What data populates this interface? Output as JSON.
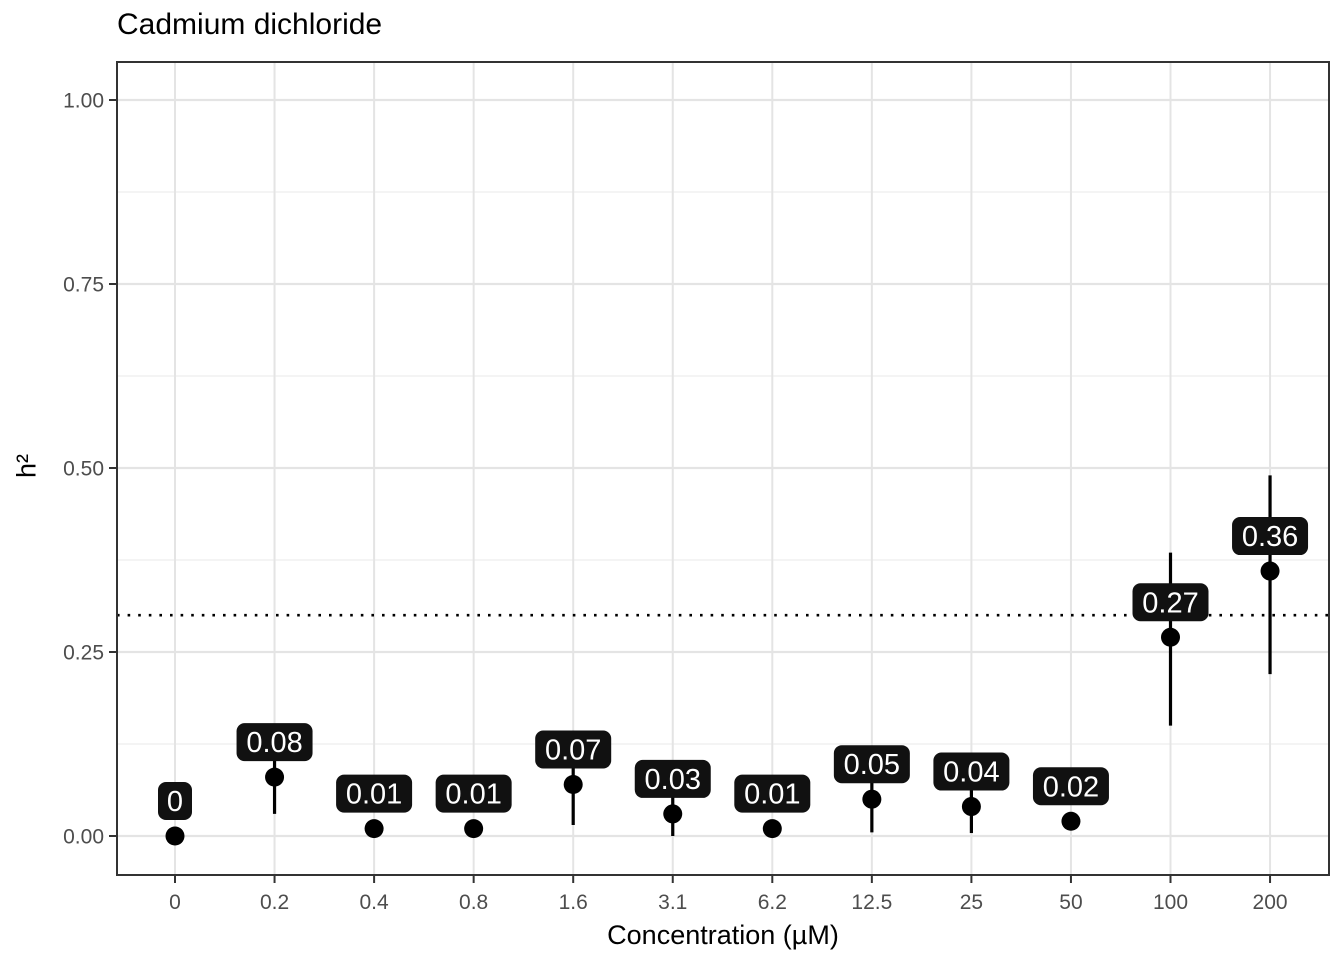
{
  "chart_data": {
    "type": "scatter",
    "title": "Cadmium dichloride",
    "xlabel": "Concentration (µM)",
    "ylabel": "h²",
    "categories": [
      "0",
      "0.2",
      "0.4",
      "0.8",
      "1.6",
      "3.1",
      "6.2",
      "12.5",
      "25",
      "50",
      "100",
      "200"
    ],
    "values": [
      0,
      0.08,
      0.01,
      0.01,
      0.07,
      0.03,
      0.01,
      0.05,
      0.04,
      0.02,
      0.27,
      0.36
    ],
    "point_labels": [
      "0",
      "0.08",
      "0.01",
      "0.01",
      "0.07",
      "0.03",
      "0.01",
      "0.05",
      "0.04",
      "0.02",
      "0.27",
      "0.36"
    ],
    "error_low": [
      0,
      0.03,
      0,
      0,
      0.015,
      0,
      0,
      0.005,
      0.004,
      0.01,
      0.15,
      0.22
    ],
    "error_high": [
      0,
      0.13,
      0.022,
      0.022,
      0.125,
      0.06,
      0.02,
      0.095,
      0.075,
      0.025,
      0.385,
      0.49
    ],
    "reference_line_y": 0.3,
    "reference_line_style": "dotted",
    "y_tick_labels": [
      "0.00",
      "0.25",
      "0.50",
      "0.75",
      "1.00"
    ],
    "y_tick_values": [
      0,
      0.25,
      0.5,
      0.75,
      1.0
    ],
    "y_minor_values": [
      0.125,
      0.375,
      0.625,
      0.875
    ],
    "ylim": [
      0,
      1
    ],
    "grid": "on",
    "legend": "none",
    "colors": {
      "point": "#000000",
      "error_bar": "#000000",
      "label_bg": "#111111",
      "label_text": "#ffffff",
      "reference_line": "#000000",
      "grid_major": "#E4E4E4",
      "grid_minor": "#F1F1F1",
      "panel_border": "#333333",
      "axis_text": "#4D4D4D",
      "tick_mark": "#333333",
      "background": "#ffffff"
    }
  }
}
